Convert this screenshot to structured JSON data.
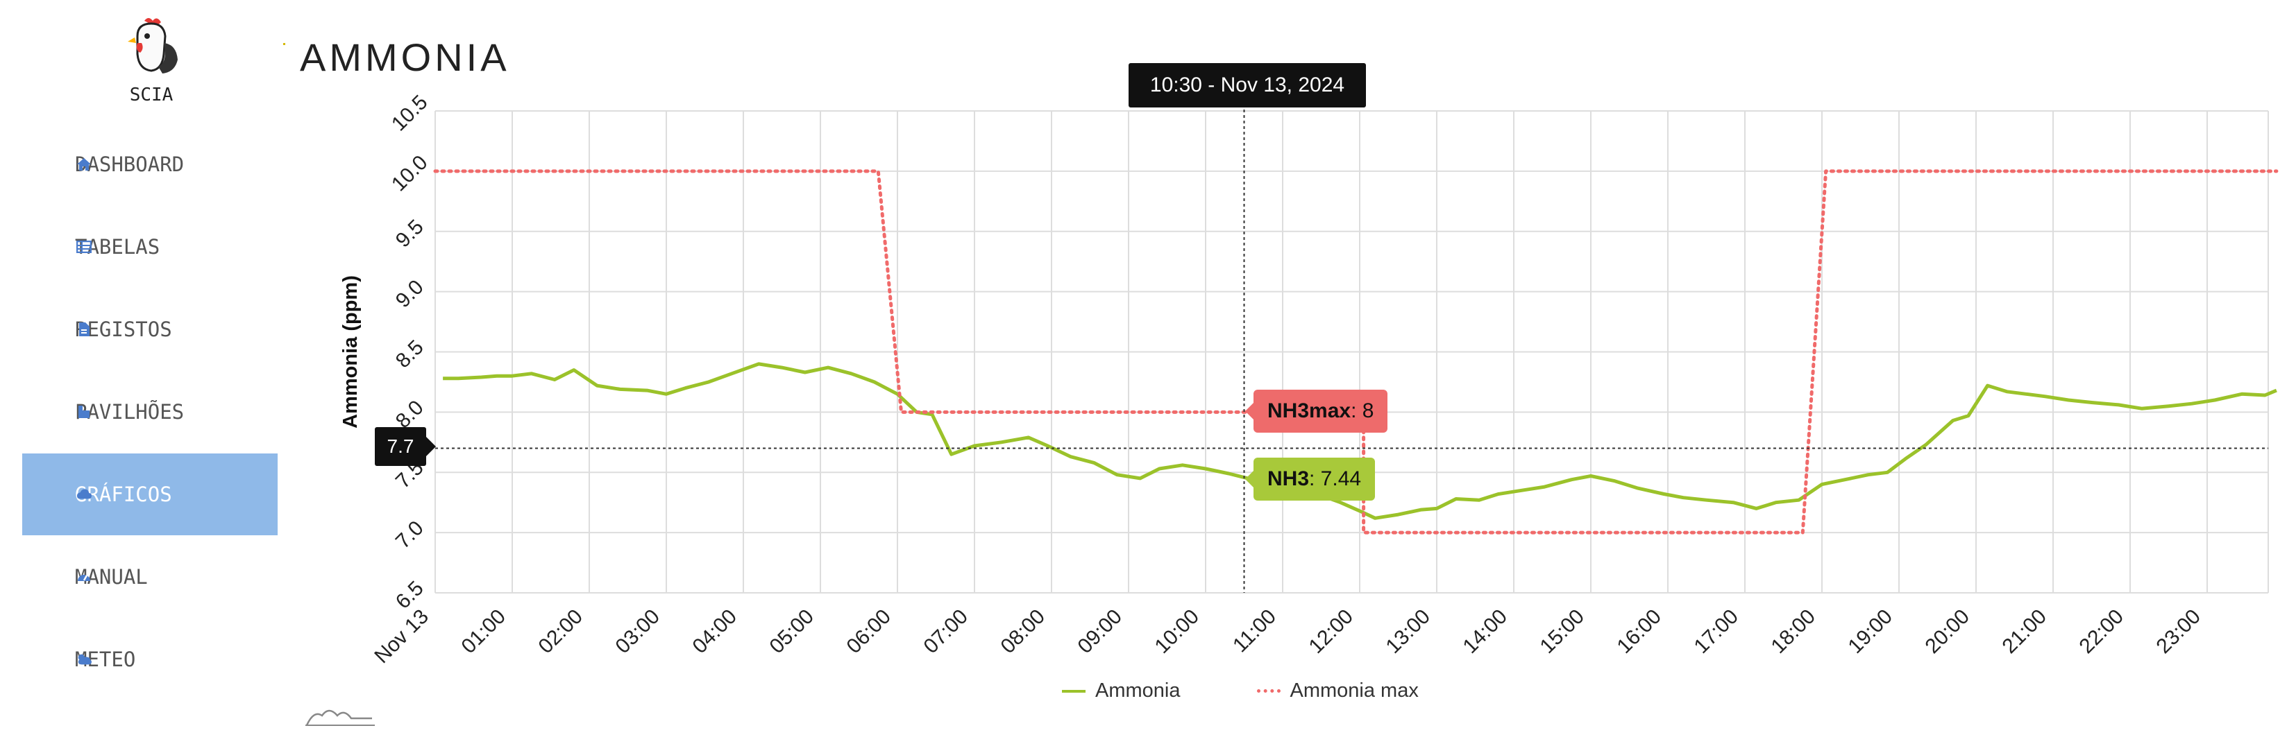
{
  "app": {
    "name": "SCIA"
  },
  "sidebar": {
    "items": [
      {
        "label": "DASHBOARD",
        "icon": "home-icon"
      },
      {
        "label": "TABELAS",
        "icon": "table-icon"
      },
      {
        "label": "REGISTOS",
        "icon": "document-icon"
      },
      {
        "label": "PAVILHÕES",
        "icon": "building-icon"
      },
      {
        "label": "GRÁFICOS",
        "icon": "cloud-icon",
        "active": true
      },
      {
        "label": "MANUAL",
        "icon": "dashboard-icon"
      },
      {
        "label": "METEO",
        "icon": "weather-icon"
      }
    ]
  },
  "page": {
    "title": "AMMONIA"
  },
  "crosshair": {
    "time_label": "10:30 - Nov 13, 2024",
    "y_label": "7.7",
    "y_value": 7.7,
    "x_hour": 10.5
  },
  "tooltips": {
    "max": {
      "name": "NH3max",
      "value": ": 8"
    },
    "nh3": {
      "name": "NH3",
      "value": ": 7.44"
    }
  },
  "colors": {
    "ammonia": "#9bc22a",
    "ammonia_max": "#f06a6a",
    "active_nav": "#8fb9e8"
  },
  "chart_data": {
    "type": "line",
    "ylabel": "Ammonia (ppm)",
    "ylim": [
      6.5,
      10.5
    ],
    "yticks": [
      "6.5",
      "7.0",
      "7.5",
      "8.0",
      "8.5",
      "9.0",
      "9.5",
      "10.0",
      "10.5"
    ],
    "xlim": [
      0,
      23.9
    ],
    "xticks": [
      "Nov 13",
      "01:00",
      "02:00",
      "03:00",
      "04:00",
      "05:00",
      "06:00",
      "07:00",
      "08:00",
      "09:00",
      "10:00",
      "11:00",
      "12:00",
      "13:00",
      "14:00",
      "15:00",
      "16:00",
      "17:00",
      "18:00",
      "19:00",
      "20:00",
      "21:00",
      "22:00",
      "23:00"
    ],
    "grid": true,
    "legend_position": "bottom",
    "series": [
      {
        "name": "Ammonia",
        "style": "solid",
        "x": [
          0.1,
          0.3,
          0.6,
          0.8,
          1.0,
          1.25,
          1.55,
          1.8,
          2.1,
          2.4,
          2.75,
          3.0,
          3.25,
          3.55,
          3.85,
          4.2,
          4.5,
          4.8,
          5.1,
          5.4,
          5.7,
          6.0,
          6.25,
          6.45,
          6.7,
          7.0,
          7.35,
          7.7,
          7.95,
          8.25,
          8.55,
          8.85,
          9.15,
          9.4,
          9.7,
          10.0,
          10.3,
          10.55,
          10.85,
          11.15,
          11.45,
          11.75,
          12.0,
          12.2,
          12.5,
          12.8,
          13.0,
          13.25,
          13.55,
          13.8,
          14.1,
          14.4,
          14.75,
          15.0,
          15.3,
          15.6,
          15.95,
          16.2,
          16.5,
          16.85,
          17.15,
          17.4,
          17.7,
          18.0,
          18.3,
          18.6,
          18.85,
          19.1,
          19.35,
          19.7,
          19.9,
          20.15,
          20.4,
          20.65,
          20.9,
          21.2,
          21.5,
          21.85,
          22.15,
          22.5,
          22.8,
          23.1,
          23.45,
          23.75,
          23.9
        ],
        "values": [
          8.28,
          8.28,
          8.29,
          8.3,
          8.3,
          8.32,
          8.27,
          8.35,
          8.22,
          8.19,
          8.18,
          8.15,
          8.2,
          8.25,
          8.32,
          8.4,
          8.37,
          8.33,
          8.37,
          8.32,
          8.25,
          8.15,
          8.0,
          7.98,
          7.65,
          7.72,
          7.75,
          7.79,
          7.72,
          7.63,
          7.58,
          7.48,
          7.45,
          7.53,
          7.56,
          7.53,
          7.49,
          7.45,
          7.44,
          7.38,
          7.32,
          7.25,
          7.18,
          7.12,
          7.15,
          7.19,
          7.2,
          7.28,
          7.27,
          7.32,
          7.35,
          7.38,
          7.44,
          7.47,
          7.43,
          7.37,
          7.32,
          7.29,
          7.27,
          7.25,
          7.2,
          7.25,
          7.27,
          7.4,
          7.44,
          7.48,
          7.5,
          7.62,
          7.73,
          7.93,
          7.97,
          8.22,
          8.17,
          8.15,
          8.13,
          8.1,
          8.08,
          8.06,
          8.03,
          8.05,
          8.07,
          8.1,
          8.15,
          8.14,
          8.18
        ]
      },
      {
        "name": "Ammonia max",
        "style": "dotted",
        "x": [
          0,
          5.75,
          6.05,
          12.05,
          12.05,
          17.75,
          18.05,
          23.9
        ],
        "values": [
          10.0,
          10.0,
          8.0,
          8.0,
          7.0,
          7.0,
          10.0,
          10.0
        ]
      }
    ]
  }
}
